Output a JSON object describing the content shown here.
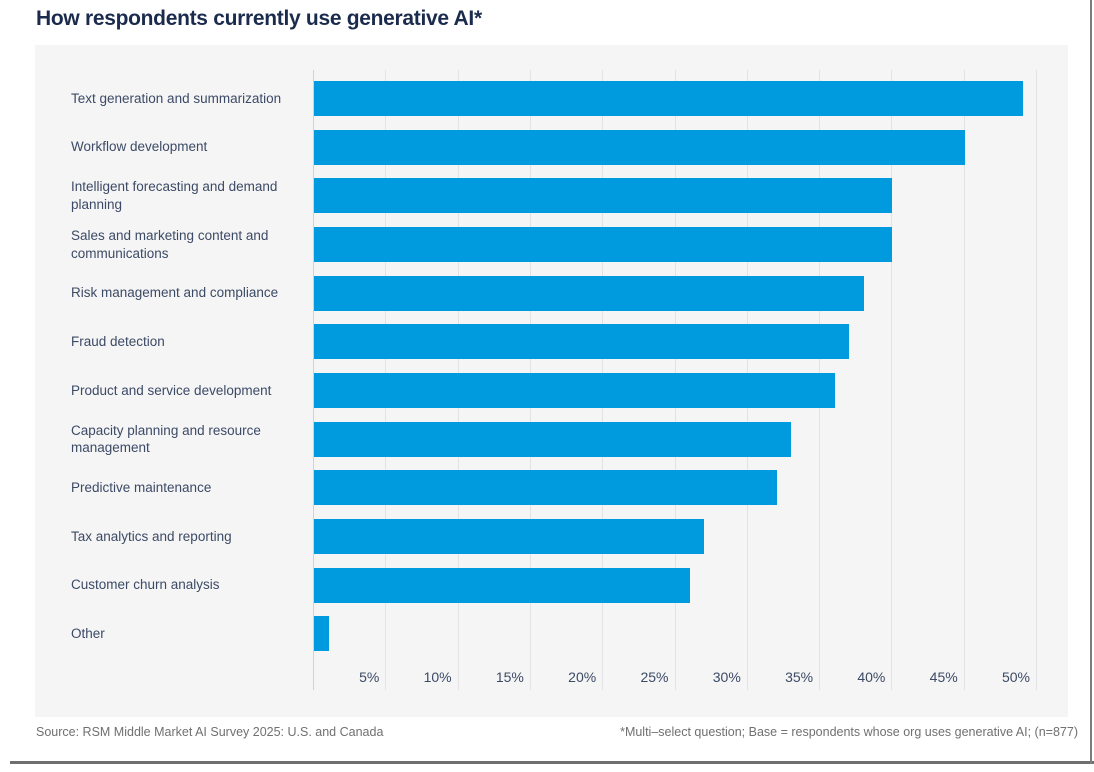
{
  "title": "How respondents currently use generative AI*",
  "chart_data": {
    "type": "bar",
    "orientation": "horizontal",
    "title": "How respondents currently use generative AI*",
    "categories": [
      "Text generation and summarization",
      "Workflow development",
      "Intelligent forecasting and demand planning",
      "Sales and marketing content and communications",
      "Risk management and compliance",
      "Fraud detection",
      "Product and service development",
      "Capacity planning and resource management",
      "Predictive maintenance",
      "Tax analytics and reporting",
      "Customer churn analysis",
      "Other"
    ],
    "values": [
      49,
      45,
      40,
      40,
      38,
      37,
      36,
      33,
      32,
      27,
      26,
      1
    ],
    "unit": "%",
    "xlim": [
      0,
      52
    ],
    "ticks": [
      5,
      10,
      15,
      20,
      25,
      30,
      35,
      40,
      45,
      50
    ],
    "tick_labels": [
      "5%",
      "10%",
      "15%",
      "20%",
      "25%",
      "30%",
      "35%",
      "40%",
      "45%",
      "50%"
    ],
    "grid": true,
    "legend": null,
    "bar_color": "#009ADE"
  },
  "footer": {
    "source": "Source: RSM Middle Market AI Survey 2025: U.S. and Canada",
    "note": "*Multi–select question; Base = respondents whose org uses generative AI; (n=877)"
  },
  "colors": {
    "bar": "#009ADE",
    "title_text": "#1b2b4d",
    "label_text": "#3c4a66",
    "footer_text": "#707070",
    "panel_background": "#f5f5f5",
    "gridline": "#e3e3e5"
  }
}
